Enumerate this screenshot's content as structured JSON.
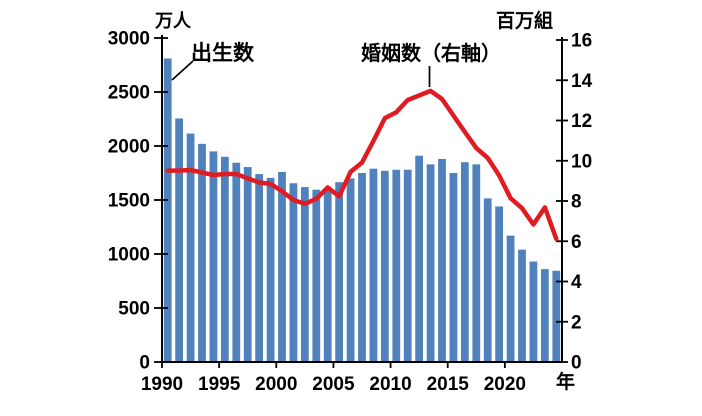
{
  "chart_data": {
    "type": "bar+line",
    "title": "",
    "x": [
      1990,
      1991,
      1992,
      1993,
      1994,
      1995,
      1996,
      1997,
      1998,
      1999,
      2000,
      2001,
      2002,
      2003,
      2004,
      2005,
      2006,
      2007,
      2008,
      2009,
      2010,
      2011,
      2012,
      2013,
      2014,
      2015,
      2016,
      2017,
      2018,
      2019,
      2020,
      2021,
      2022,
      2023,
      2024
    ],
    "series": [
      {
        "name": "出生数",
        "type": "bar",
        "axis": "left",
        "color": "#4f81bd",
        "values": [
          2810,
          2255,
          2115,
          2020,
          1950,
          1900,
          1845,
          1805,
          1740,
          1705,
          1760,
          1655,
          1620,
          1595,
          1605,
          1665,
          1700,
          1750,
          1790,
          1770,
          1780,
          1780,
          1910,
          1830,
          1880,
          1750,
          1850,
          1830,
          1515,
          1440,
          1170,
          1040,
          930,
          860,
          845
        ]
      },
      {
        "name": "婚姻数（右軸）",
        "type": "line",
        "axis": "right",
        "color": "#e01b22",
        "values": [
          9.51,
          9.51,
          9.54,
          9.41,
          9.29,
          9.34,
          9.34,
          9.13,
          8.92,
          8.85,
          8.48,
          8.05,
          7.86,
          8.11,
          8.67,
          8.23,
          9.45,
          9.91,
          10.98,
          12.12,
          12.41,
          13.02,
          13.24,
          13.47,
          13.07,
          12.25,
          11.43,
          10.63,
          10.14,
          9.27,
          8.14,
          7.64,
          6.83,
          7.68,
          6.11
        ]
      }
    ],
    "left_axis": {
      "unit": "万人",
      "min": 0,
      "max": 3000,
      "ticks": [
        3000,
        2500,
        2000,
        1500,
        1000,
        500,
        0
      ]
    },
    "right_axis": {
      "unit": "百万組",
      "min": 0,
      "max": 16,
      "ticks": [
        16,
        14,
        12,
        10,
        8,
        6,
        4,
        2,
        0
      ]
    },
    "x_axis": {
      "unit": "年",
      "tick_years": [
        1990,
        1995,
        2000,
        2005,
        2010,
        2015,
        2020
      ]
    },
    "grid": false,
    "legend_position": "in-plot annotations"
  },
  "labels": {
    "left_unit": "万人",
    "right_unit": "百万組",
    "x_unit": "年",
    "births_annotation": "出生数",
    "marriage_annotation": "婚姻数（右軸）"
  },
  "colors": {
    "bar": "#4f81bd",
    "line": "#e01b22",
    "axis": "#000000",
    "background": "#ffffff"
  }
}
